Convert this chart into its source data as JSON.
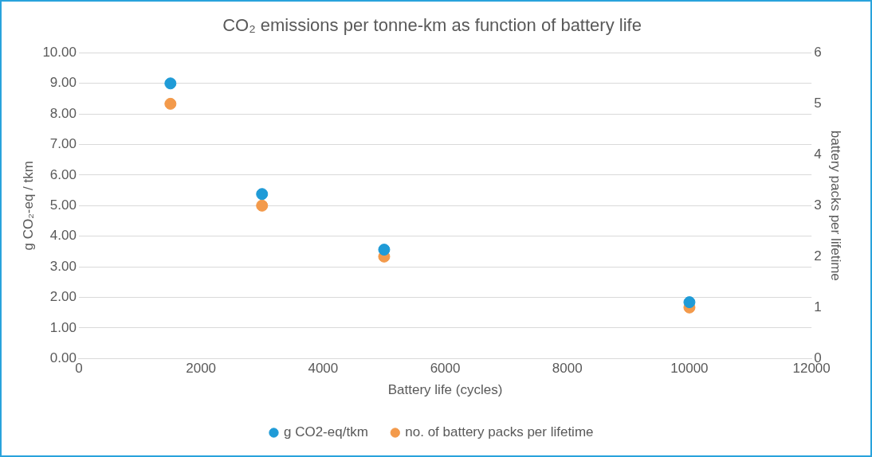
{
  "chart_data": {
    "type": "scatter",
    "title": "CO₂ emissions per tonne-km as function of battery life",
    "xlabel": "Battery life (cycles)",
    "ylabel": "g CO₂-eq / tkm",
    "y2label": "battery packs per lifetime",
    "x": [
      1500,
      3000,
      5000,
      10000
    ],
    "series": [
      {
        "name": "g CO2-eq/tkm",
        "color": "#1f9bd7",
        "values": [
          9.0,
          5.38,
          3.56,
          1.84
        ]
      },
      {
        "name": "no. of battery packs per lifetime",
        "color": "#f39a4b",
        "values": [
          5,
          3,
          2,
          1
        ],
        "axis": "y2"
      }
    ],
    "xlim": [
      0,
      12000
    ],
    "xticks": [
      0,
      2000,
      4000,
      6000,
      8000,
      10000,
      12000
    ],
    "ylim": [
      0,
      10
    ],
    "yticks": [
      {
        "value": 0,
        "label": "0.00"
      },
      {
        "value": 1,
        "label": "1.00"
      },
      {
        "value": 2,
        "label": "2.00"
      },
      {
        "value": 3,
        "label": "3.00"
      },
      {
        "value": 4,
        "label": "4.00"
      },
      {
        "value": 5,
        "label": "5.00"
      },
      {
        "value": 6,
        "label": "6.00"
      },
      {
        "value": 7,
        "label": "7.00"
      },
      {
        "value": 8,
        "label": "8.00"
      },
      {
        "value": 9,
        "label": "9.00"
      },
      {
        "value": 10,
        "label": "10.00"
      }
    ],
    "y2lim": [
      0,
      6
    ],
    "y2ticks": [
      0,
      1,
      2,
      3,
      4,
      5,
      6
    ],
    "grid": "y",
    "legend": "bottom",
    "marker": "circle"
  }
}
